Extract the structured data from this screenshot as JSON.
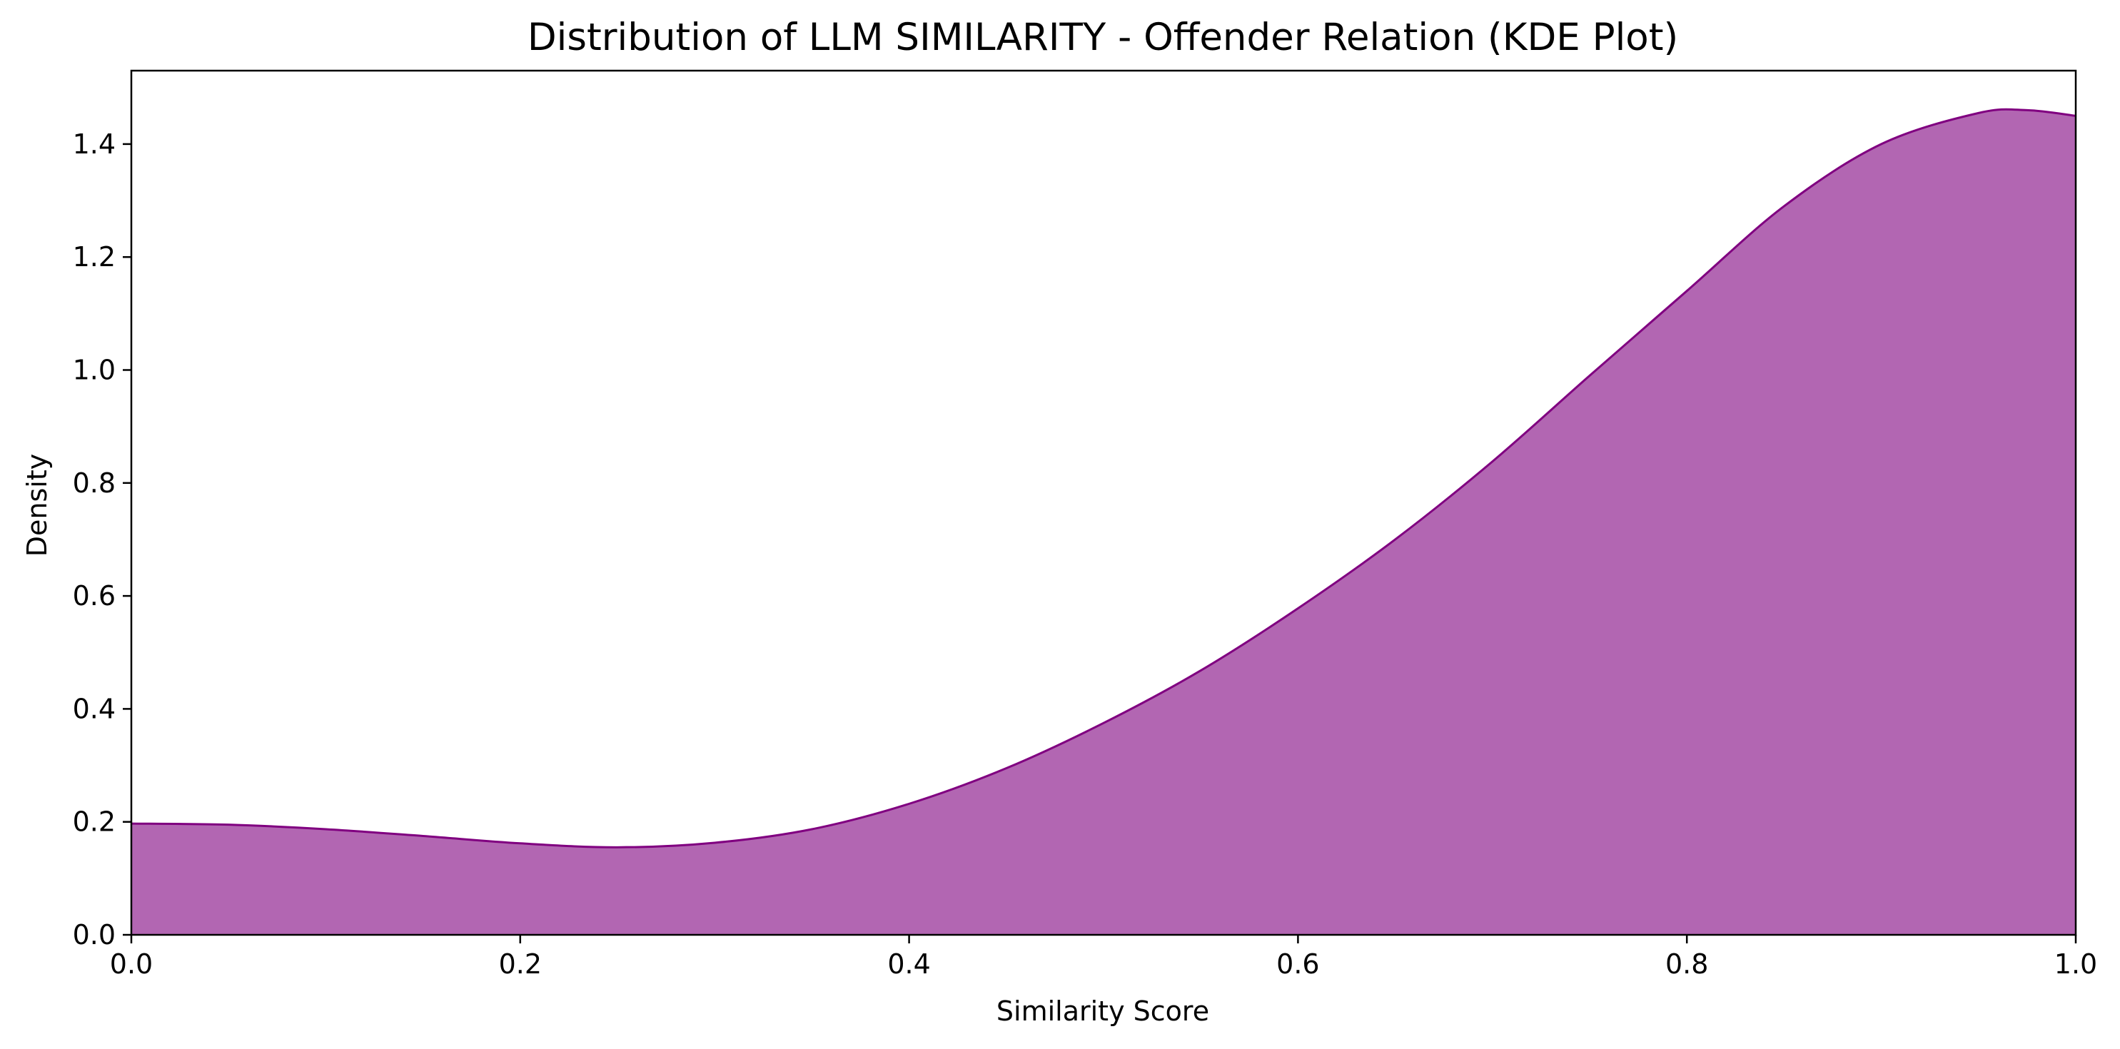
{
  "chart_data": {
    "type": "area",
    "title": "Distribution of LLM SIMILARITY - Offender Relation (KDE Plot)",
    "xlabel": "Similarity Score",
    "ylabel": "Density",
    "xlim": [
      0.0,
      1.0
    ],
    "ylim": [
      0.0,
      1.53
    ],
    "xticks": [
      "0.0",
      "0.2",
      "0.4",
      "0.6",
      "0.8",
      "1.0"
    ],
    "yticks": [
      "0.0",
      "0.2",
      "0.4",
      "0.6",
      "0.8",
      "1.0",
      "1.2",
      "1.4"
    ],
    "grid": false,
    "legend": "none",
    "fill_color": "#b266b2",
    "line_color": "#800080",
    "series": [
      {
        "x": [
          0.0,
          0.05,
          0.1,
          0.15,
          0.2,
          0.25,
          0.3,
          0.35,
          0.4,
          0.45,
          0.5,
          0.55,
          0.6,
          0.65,
          0.7,
          0.75,
          0.8,
          0.85,
          0.9,
          0.95,
          0.975,
          1.0
        ],
        "values": [
          0.197,
          0.195,
          0.187,
          0.175,
          0.162,
          0.155,
          0.163,
          0.187,
          0.232,
          0.295,
          0.375,
          0.468,
          0.578,
          0.7,
          0.838,
          0.99,
          1.14,
          1.29,
          1.4,
          1.455,
          1.46,
          1.45
        ]
      }
    ]
  }
}
